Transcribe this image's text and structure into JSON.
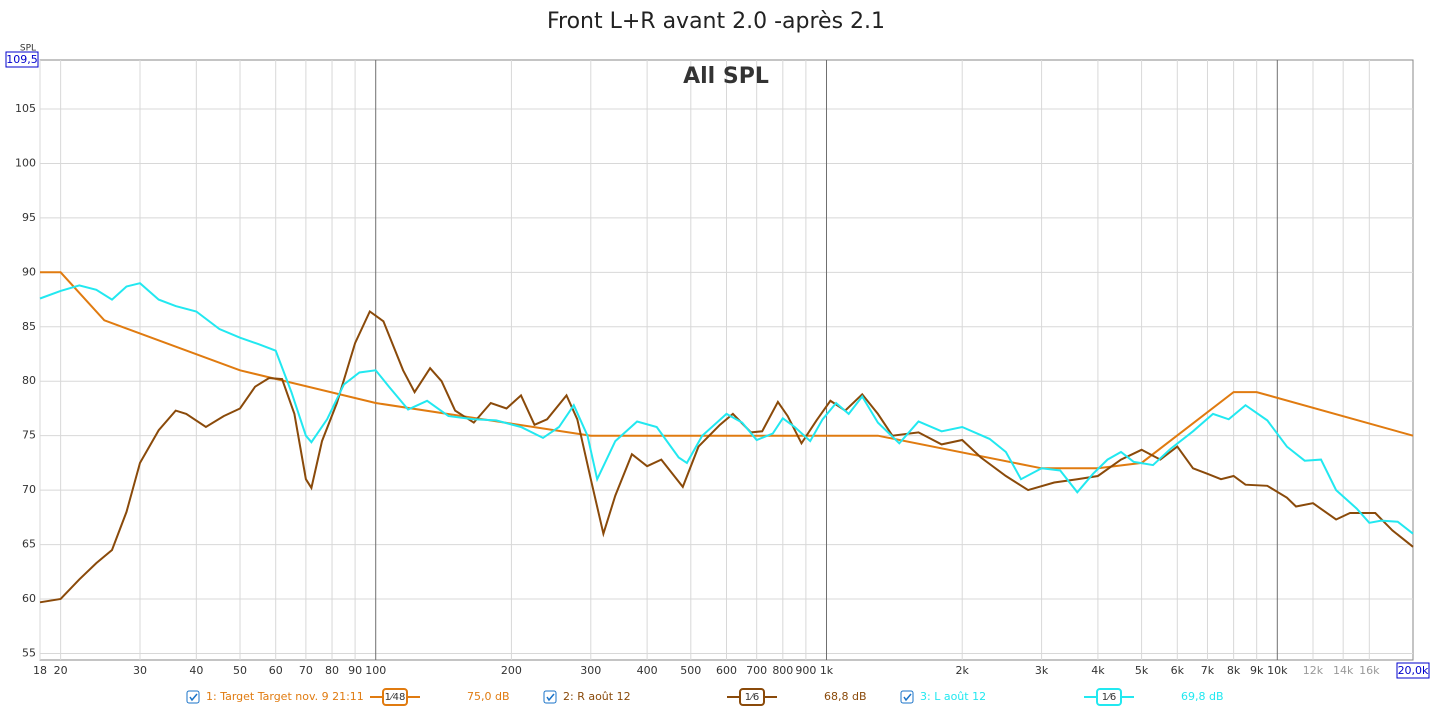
{
  "chart_data": {
    "type": "line",
    "title": "Front L+R avant 2.0 -après 2.1",
    "annotation": "All SPL",
    "ylabel": "SPL",
    "xscale": "log",
    "grid": true,
    "xlim": [
      18,
      20000
    ],
    "ylim": [
      54.4,
      109.5
    ],
    "xticks": [
      18,
      20,
      30,
      40,
      50,
      60,
      70,
      80,
      90,
      100,
      200,
      300,
      400,
      500,
      600,
      700,
      800,
      900,
      {
        "value": 1000,
        "label": "1k"
      },
      {
        "value": 2000,
        "label": "2k"
      },
      {
        "value": 3000,
        "label": "3k"
      },
      {
        "value": 4000,
        "label": "4k"
      },
      {
        "value": 5000,
        "label": "5k"
      },
      {
        "value": 6000,
        "label": "6k"
      },
      {
        "value": 7000,
        "label": "7k"
      },
      {
        "value": 8000,
        "label": "8k"
      },
      {
        "value": 9000,
        "label": "9k"
      },
      {
        "value": 10000,
        "label": "10k"
      },
      {
        "value": 12000,
        "label": "12k"
      },
      {
        "value": 14000,
        "label": "14k"
      },
      {
        "value": 16000,
        "label": "16k"
      },
      {
        "value": 20000,
        "label": "20,0k"
      }
    ],
    "yticks": [
      55,
      60,
      65,
      70,
      75,
      80,
      85,
      90,
      95,
      100,
      105,
      {
        "value": 109.5,
        "label": "109,5"
      }
    ],
    "series": [
      {
        "name": "1: Target Target nov. 9 21:11",
        "color": "#e07b10",
        "smoothing": "1⁄48",
        "level": "75,0 dB",
        "x": [
          18,
          20,
          25,
          50,
          100,
          300,
          1000,
          1300,
          3000,
          4000,
          5000,
          8000,
          9000,
          20000
        ],
        "values": [
          90,
          90,
          85.6,
          81,
          78,
          75,
          75,
          75,
          72,
          72,
          72.5,
          79,
          79,
          75
        ]
      },
      {
        "name": "2: R août 12",
        "color": "#8a4a0a",
        "smoothing": "1⁄6",
        "level": "68,8 dB",
        "x": [
          18,
          20,
          22,
          24,
          26,
          28,
          30,
          33,
          36,
          38,
          42,
          46,
          50,
          54,
          58,
          62,
          66,
          70,
          72,
          76,
          82,
          90,
          97,
          104,
          115,
          122,
          132,
          140,
          150,
          165,
          180,
          195,
          210,
          225,
          240,
          265,
          280,
          300,
          320,
          340,
          370,
          400,
          430,
          480,
          520,
          580,
          620,
          680,
          720,
          780,
          820,
          880,
          950,
          1020,
          1100,
          1200,
          1300,
          1400,
          1600,
          1800,
          2000,
          2200,
          2500,
          2800,
          3200,
          3600,
          4000,
          4500,
          5000,
          5500,
          6000,
          6500,
          7000,
          7500,
          8000,
          8500,
          9500,
          10500,
          11000,
          12000,
          13500,
          14500,
          16500,
          18000,
          20000
        ],
        "values": [
          59.7,
          60,
          61.8,
          63.3,
          64.5,
          68,
          72.5,
          75.5,
          77.3,
          77,
          75.8,
          76.8,
          77.5,
          79.5,
          80.3,
          80.2,
          77,
          71,
          70.2,
          74.5,
          78,
          83.5,
          86.4,
          85.5,
          81,
          79,
          81.2,
          80,
          77.3,
          76.2,
          78,
          77.5,
          78.7,
          76,
          76.5,
          78.7,
          76.5,
          71,
          66,
          69.5,
          73.3,
          72.2,
          72.8,
          70.3,
          74,
          76,
          77,
          75.3,
          75.4,
          78.1,
          76.8,
          74.3,
          76.4,
          78.2,
          77.3,
          78.8,
          77,
          75,
          75.3,
          74.2,
          74.6,
          73,
          71.3,
          70,
          70.7,
          71,
          71.3,
          72.8,
          73.7,
          72.8,
          74,
          72,
          71.5,
          71,
          71.3,
          70.5,
          70.4,
          69.3,
          68.5,
          68.8,
          67.3,
          67.9,
          67.9,
          66.3,
          64.8
        ]
      },
      {
        "name": "3: L août 12",
        "color": "#22e8f0",
        "smoothing": "1⁄6",
        "level": "69,8 dB",
        "x": [
          18,
          20,
          22,
          24,
          26,
          28,
          30,
          33,
          36,
          40,
          45,
          50,
          55,
          60,
          65,
          70,
          72,
          78,
          85,
          92,
          100,
          107,
          118,
          130,
          145,
          165,
          185,
          210,
          235,
          255,
          275,
          295,
          310,
          340,
          380,
          420,
          470,
          490,
          530,
          600,
          650,
          700,
          760,
          800,
          850,
          920,
          980,
          1050,
          1120,
          1200,
          1300,
          1450,
          1600,
          1800,
          2000,
          2300,
          2500,
          2700,
          3000,
          3300,
          3600,
          3900,
          4200,
          4500,
          4800,
          5300,
          5800,
          6500,
          7200,
          7800,
          8500,
          9500,
          10500,
          11500,
          12500,
          13500,
          15000,
          16000,
          17000,
          18500,
          20000
        ],
        "values": [
          87.6,
          88.3,
          88.8,
          88.4,
          87.5,
          88.7,
          89,
          87.5,
          86.9,
          86.4,
          84.8,
          84,
          83.4,
          82.8,
          79,
          75,
          74.4,
          76.5,
          79.7,
          80.8,
          81,
          79.5,
          77.4,
          78.2,
          76.8,
          76.5,
          76.4,
          75.8,
          74.8,
          75.8,
          77.8,
          75,
          71,
          74.5,
          76.3,
          75.8,
          73,
          72.5,
          75,
          77,
          76.2,
          74.6,
          75.2,
          76.6,
          75.8,
          74.5,
          76.5,
          78,
          77,
          78.6,
          76.2,
          74.3,
          76.3,
          75.4,
          75.8,
          74.7,
          73.5,
          71,
          72,
          71.8,
          69.8,
          71.5,
          72.8,
          73.5,
          72.6,
          72.3,
          73.8,
          75.4,
          77,
          76.5,
          77.8,
          76.4,
          74,
          72.7,
          72.8,
          70,
          68.3,
          67,
          67.2,
          67.1,
          66
        ]
      }
    ]
  }
}
